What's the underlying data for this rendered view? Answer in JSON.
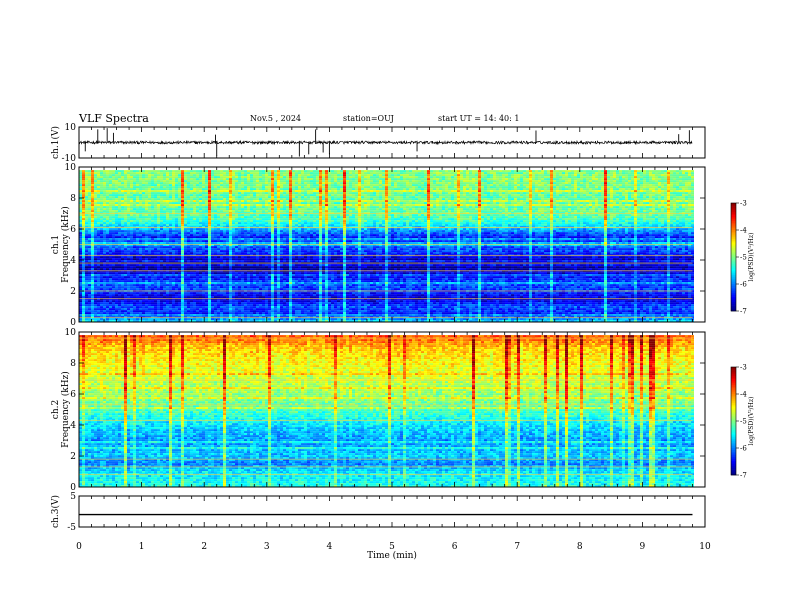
{
  "header": {
    "title": "VLF Spectra",
    "date": "Nov.5 , 2024",
    "station": "station=OUJ",
    "start_ut": "start UT = 14: 40: 1"
  },
  "chart_data": [
    {
      "type": "line",
      "name": "ch1-waveform",
      "ylabel": "ch.1(V)",
      "ylim": [
        -10,
        10
      ],
      "yticks": [
        "10",
        "-10"
      ],
      "x_range_min": [
        0,
        9.8
      ],
      "baseline_v": 0,
      "spike_times_min": [
        0.1,
        0.3,
        0.45,
        0.55,
        2.18,
        2.2,
        3.52,
        3.67,
        3.78,
        3.9,
        4.0,
        5.4,
        7.3,
        9.58,
        9.75
      ]
    },
    {
      "type": "heatmap",
      "name": "ch1-spectrogram",
      "ylabel": "ch.1 Frequency (kHz)",
      "ylim": [
        0,
        10
      ],
      "yticks": [
        "0",
        "2",
        "4",
        "6",
        "8",
        "10"
      ],
      "x_range_min": [
        0,
        9.8
      ],
      "colorbar": {
        "label": "log(PSD)(V²/Hz)",
        "range": [
          -7,
          -3
        ],
        "ticks": [
          "-3",
          "-4",
          "-5",
          "-6",
          "-7"
        ]
      },
      "band_profile_khz": [
        [
          0,
          -5.6
        ],
        [
          0.5,
          -6.4
        ],
        [
          1,
          -6.2
        ],
        [
          1.5,
          -6.7
        ],
        [
          2,
          -6.3
        ],
        [
          2.5,
          -6.2
        ],
        [
          3,
          -6.5
        ],
        [
          3.5,
          -6.9
        ],
        [
          4,
          -6.8
        ],
        [
          4.5,
          -6.3
        ],
        [
          5,
          -6.1
        ],
        [
          5.5,
          -6.4
        ],
        [
          6,
          -5.8
        ],
        [
          6.5,
          -5.3
        ],
        [
          7,
          -5.1
        ],
        [
          8,
          -5.1
        ],
        [
          9,
          -5.0
        ],
        [
          10,
          -5.0
        ]
      ],
      "lines_khz": [
        0.3,
        1.5,
        2.0,
        3.3,
        3.8,
        4.3,
        5.0,
        6.1,
        7.0
      ]
    },
    {
      "type": "heatmap",
      "name": "ch2-spectrogram",
      "ylabel": "ch.2 Frequency (kHz)",
      "ylim": [
        0,
        10
      ],
      "yticks": [
        "0",
        "2",
        "4",
        "6",
        "8",
        "10"
      ],
      "x_range_min": [
        0,
        9.8
      ],
      "colorbar": {
        "label": "log(PSD)(V²/Hz)",
        "range": [
          -7,
          -3
        ],
        "ticks": [
          "-3",
          "-4",
          "-5",
          "-6",
          "-7"
        ]
      },
      "band_profile_khz": [
        [
          0,
          -5.4
        ],
        [
          1,
          -5.6
        ],
        [
          1.5,
          -6.0
        ],
        [
          2,
          -5.7
        ],
        [
          3,
          -5.9
        ],
        [
          4,
          -5.6
        ],
        [
          5,
          -5.2
        ],
        [
          6,
          -4.9
        ],
        [
          7,
          -4.7
        ],
        [
          8,
          -4.5
        ],
        [
          9,
          -4.3
        ],
        [
          9.7,
          -3.8
        ],
        [
          10,
          -4.4
        ]
      ],
      "lines_khz": [
        0.8,
        1.3,
        1.8,
        4.3,
        5.3,
        6.9,
        9.6
      ]
    },
    {
      "type": "line",
      "name": "ch3-waveform",
      "ylabel": "ch.3(V)",
      "ylim": [
        -5,
        5
      ],
      "yticks": [
        "5",
        "-5"
      ],
      "x_range_min": [
        0,
        9.8
      ],
      "baseline_v": -1
    }
  ],
  "xaxis": {
    "label": "Time (min)",
    "ticks": [
      "0",
      "1",
      "2",
      "3",
      "4",
      "5",
      "6",
      "7",
      "8",
      "9",
      "10"
    ],
    "range": [
      0,
      10
    ]
  },
  "colors": {
    "frame": "#000000",
    "background": "#ffffff"
  }
}
